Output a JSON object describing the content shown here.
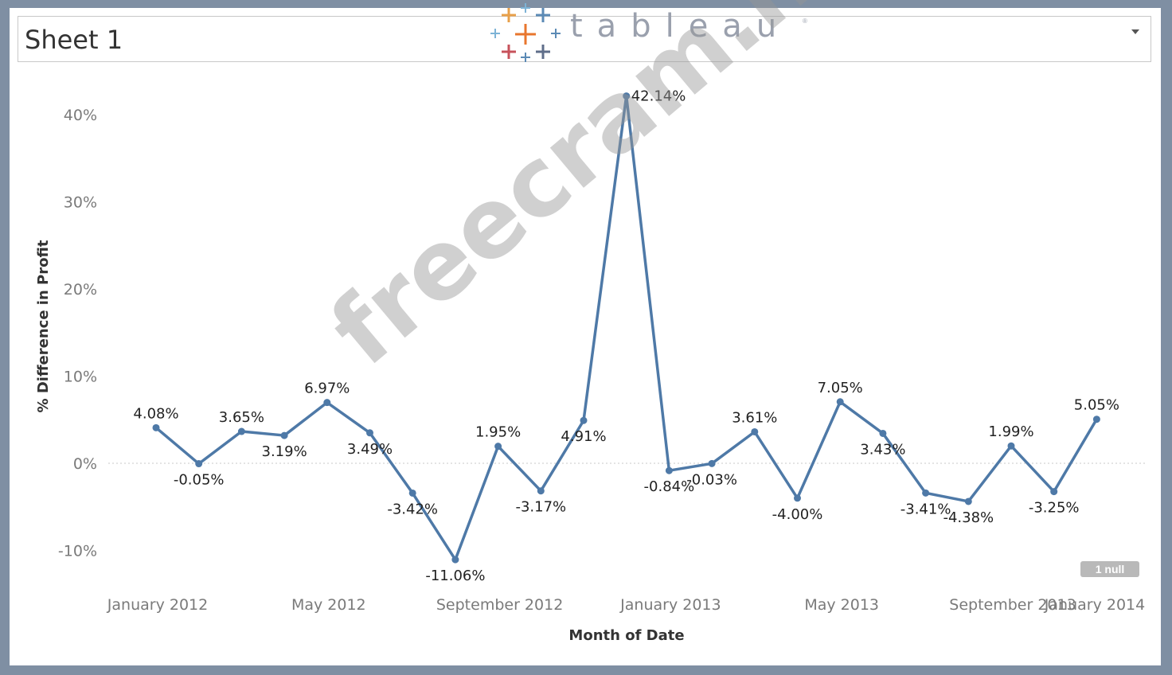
{
  "sheet": {
    "title": "Sheet 1"
  },
  "logo": {
    "wordmark": "tableau",
    "registered": "®"
  },
  "watermark": "freecram.net",
  "null_indicator": "1 null",
  "colors": {
    "line": "#4e79a7",
    "zero_line": "#c8c8c8",
    "background": "#ffffff",
    "frame": "#7f8fa3"
  },
  "chart_data": {
    "type": "line",
    "xlabel": "Month of Date",
    "ylabel": "% Difference in Profit",
    "ylim": [
      -14,
      44
    ],
    "yticks": [
      {
        "value": 40,
        "label": "40%"
      },
      {
        "value": 30,
        "label": "30%"
      },
      {
        "value": 20,
        "label": "20%"
      },
      {
        "value": 10,
        "label": "10%"
      },
      {
        "value": 0,
        "label": "0%"
      },
      {
        "value": -10,
        "label": "-10%"
      }
    ],
    "xticks": [
      {
        "index": 0,
        "label": "January 2012"
      },
      {
        "index": 4,
        "label": "May 2012"
      },
      {
        "index": 8,
        "label": "September 2012"
      },
      {
        "index": 12,
        "label": "January 2013"
      },
      {
        "index": 16,
        "label": "May 2013"
      },
      {
        "index": 20,
        "label": "September 2013"
      },
      {
        "index": 24,
        "label": "January 2014"
      }
    ],
    "series": [
      {
        "points": [
          {
            "x": "January 2012",
            "y": 4.08,
            "label": "4.08%"
          },
          {
            "x": "February 2012",
            "y": -0.05,
            "label": "-0.05%"
          },
          {
            "x": "March 2012",
            "y": 3.65,
            "label": "3.65%"
          },
          {
            "x": "April 2012",
            "y": 3.19,
            "label": "3.19%"
          },
          {
            "x": "May 2012",
            "y": 6.97,
            "label": "6.97%"
          },
          {
            "x": "June 2012",
            "y": 3.49,
            "label": "3.49%"
          },
          {
            "x": "July 2012",
            "y": -3.42,
            "label": "-3.42%"
          },
          {
            "x": "August 2012",
            "y": -11.06,
            "label": "-11.06%"
          },
          {
            "x": "September 2012",
            "y": 1.95,
            "label": "1.95%"
          },
          {
            "x": "October 2012",
            "y": -3.17,
            "label": "-3.17%"
          },
          {
            "x": "November 2012",
            "y": 4.91,
            "label": "4.91%"
          },
          {
            "x": "December 2012",
            "y": 42.14,
            "label": "42.14%"
          },
          {
            "x": "January 2013",
            "y": -0.84,
            "label": "-0.84%"
          },
          {
            "x": "February 2013",
            "y": -0.03,
            "label": "-0.03%"
          },
          {
            "x": "March 2013",
            "y": 3.61,
            "label": "3.61%"
          },
          {
            "x": "April 2013",
            "y": -4.0,
            "label": "-4.00%"
          },
          {
            "x": "May 2013",
            "y": 7.05,
            "label": "7.05%"
          },
          {
            "x": "June 2013",
            "y": 3.43,
            "label": "3.43%"
          },
          {
            "x": "July 2013",
            "y": -3.41,
            "label": "-3.41%"
          },
          {
            "x": "August 2013",
            "y": -4.38,
            "label": "-4.38%"
          },
          {
            "x": "September 2013",
            "y": 1.99,
            "label": "1.99%"
          },
          {
            "x": "October 2013",
            "y": -3.25,
            "label": "-3.25%"
          },
          {
            "x": "November 2013",
            "y": 5.05,
            "label": "5.05%"
          }
        ]
      }
    ],
    "grid": false,
    "zero_line": true
  }
}
